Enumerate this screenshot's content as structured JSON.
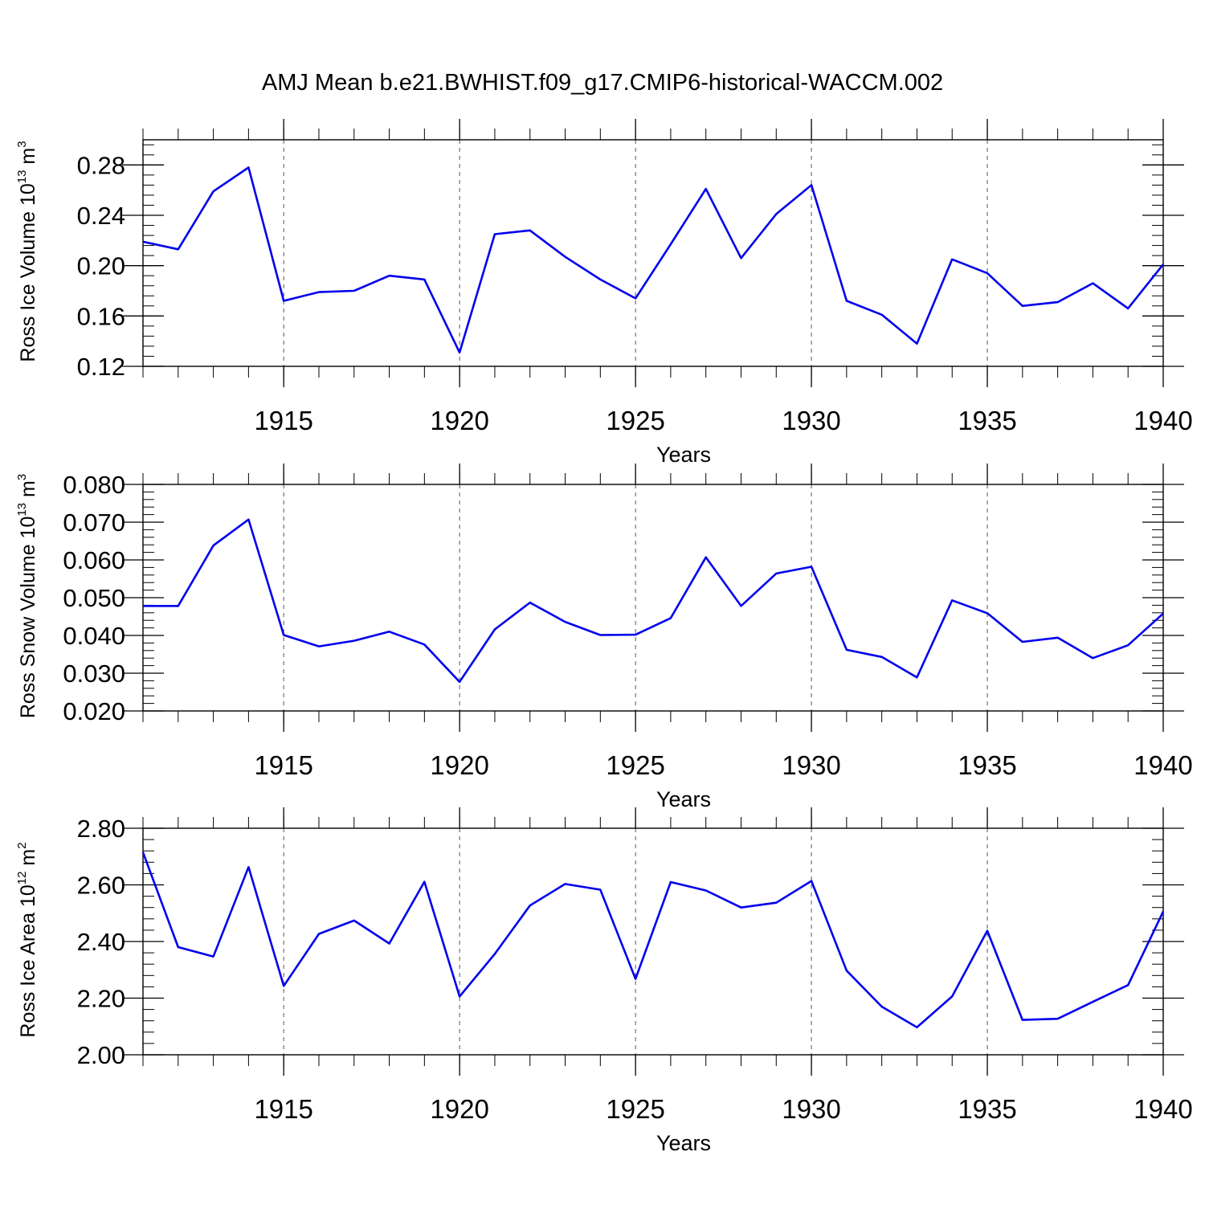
{
  "title": "AMJ Mean b.e21.BWHIST.f09_g17.CMIP6-historical-WACCM.002",
  "colors": {
    "line": "#0000ee",
    "axis": "#000000",
    "grid": "#555555"
  },
  "chart_data": [
    {
      "type": "line",
      "ylabel": "Ross Ice Volume 10",
      "ylabel_exp": "13",
      "ylabel_unit": " m",
      "ylabel_unit_exp": "3",
      "xlabel": "Years",
      "xlim": [
        1911,
        1940
      ],
      "ylim": [
        0.12,
        0.3
      ],
      "yticks": [
        0.12,
        0.16,
        0.2,
        0.24,
        0.28
      ],
      "ytick_labels": [
        "0.12",
        "0.16",
        "0.20",
        "0.24",
        "0.28"
      ],
      "xticks": [
        1915,
        1920,
        1925,
        1930,
        1935,
        1940
      ],
      "xtick_labels": [
        "1915",
        "1920",
        "1925",
        "1930",
        "1935",
        "1940"
      ],
      "vgrid": [
        1915,
        1920,
        1925,
        1930,
        1935
      ],
      "x": [
        1911,
        1912,
        1913,
        1914,
        1915,
        1916,
        1917,
        1918,
        1919,
        1920,
        1921,
        1922,
        1923,
        1924,
        1925,
        1926,
        1927,
        1928,
        1929,
        1930,
        1931,
        1932,
        1933,
        1934,
        1935,
        1936,
        1937,
        1938,
        1939,
        1940
      ],
      "values": [
        0.219,
        0.213,
        0.259,
        0.278,
        0.172,
        0.179,
        0.18,
        0.192,
        0.189,
        0.131,
        0.225,
        0.228,
        0.207,
        0.189,
        0.174,
        0.217,
        0.261,
        0.206,
        0.241,
        0.264,
        0.172,
        0.161,
        0.138,
        0.205,
        0.194,
        0.168,
        0.171,
        0.186,
        0.166,
        0.201
      ]
    },
    {
      "type": "line",
      "ylabel": "Ross Snow Volume 10",
      "ylabel_exp": "13",
      "ylabel_unit": " m",
      "ylabel_unit_exp": "3",
      "xlabel": "Years",
      "xlim": [
        1911,
        1940
      ],
      "ylim": [
        0.02,
        0.08
      ],
      "yticks": [
        0.02,
        0.03,
        0.04,
        0.05,
        0.06,
        0.07,
        0.08
      ],
      "ytick_labels": [
        "0.020",
        "0.030",
        "0.040",
        "0.050",
        "0.060",
        "0.070",
        "0.080"
      ],
      "xticks": [
        1915,
        1920,
        1925,
        1930,
        1935,
        1940
      ],
      "xtick_labels": [
        "1915",
        "1920",
        "1925",
        "1930",
        "1935",
        "1940"
      ],
      "vgrid": [
        1915,
        1920,
        1925,
        1930,
        1935
      ],
      "x": [
        1911,
        1912,
        1913,
        1914,
        1915,
        1916,
        1917,
        1918,
        1919,
        1920,
        1921,
        1922,
        1923,
        1924,
        1925,
        1926,
        1927,
        1928,
        1929,
        1930,
        1931,
        1932,
        1933,
        1934,
        1935,
        1936,
        1937,
        1938,
        1939,
        1940
      ],
      "values": [
        0.0478,
        0.0478,
        0.0638,
        0.0707,
        0.0401,
        0.0371,
        0.0386,
        0.041,
        0.0376,
        0.0277,
        0.0416,
        0.0487,
        0.0436,
        0.0401,
        0.0402,
        0.0446,
        0.0607,
        0.0478,
        0.0564,
        0.0582,
        0.0362,
        0.0343,
        0.0289,
        0.0493,
        0.0459,
        0.0383,
        0.0394,
        0.034,
        0.0374,
        0.0458
      ]
    },
    {
      "type": "line",
      "ylabel": "Ross Ice Area 10",
      "ylabel_exp": "12",
      "ylabel_unit": " m",
      "ylabel_unit_exp": "2",
      "xlabel": "Years",
      "xlim": [
        1911,
        1940
      ],
      "ylim": [
        2.0,
        2.8
      ],
      "yticks": [
        2.0,
        2.2,
        2.4,
        2.6,
        2.8
      ],
      "ytick_labels": [
        "2.00",
        "2.20",
        "2.40",
        "2.60",
        "2.80"
      ],
      "xticks": [
        1915,
        1920,
        1925,
        1930,
        1935,
        1940
      ],
      "xtick_labels": [
        "1915",
        "1920",
        "1925",
        "1930",
        "1935",
        "1940"
      ],
      "vgrid": [
        1915,
        1920,
        1925,
        1930,
        1935
      ],
      "x": [
        1911,
        1912,
        1913,
        1914,
        1915,
        1916,
        1917,
        1918,
        1919,
        1920,
        1921,
        1922,
        1923,
        1924,
        1925,
        1926,
        1927,
        1928,
        1929,
        1930,
        1931,
        1932,
        1933,
        1934,
        1935,
        1936,
        1937,
        1938,
        1939,
        1940
      ],
      "values": [
        2.715,
        2.38,
        2.347,
        2.663,
        2.243,
        2.427,
        2.474,
        2.393,
        2.611,
        2.206,
        2.356,
        2.527,
        2.603,
        2.583,
        2.268,
        2.61,
        2.58,
        2.52,
        2.537,
        2.614,
        2.297,
        2.17,
        2.097,
        2.206,
        2.438,
        2.123,
        2.127,
        2.187,
        2.246,
        2.506
      ]
    }
  ]
}
